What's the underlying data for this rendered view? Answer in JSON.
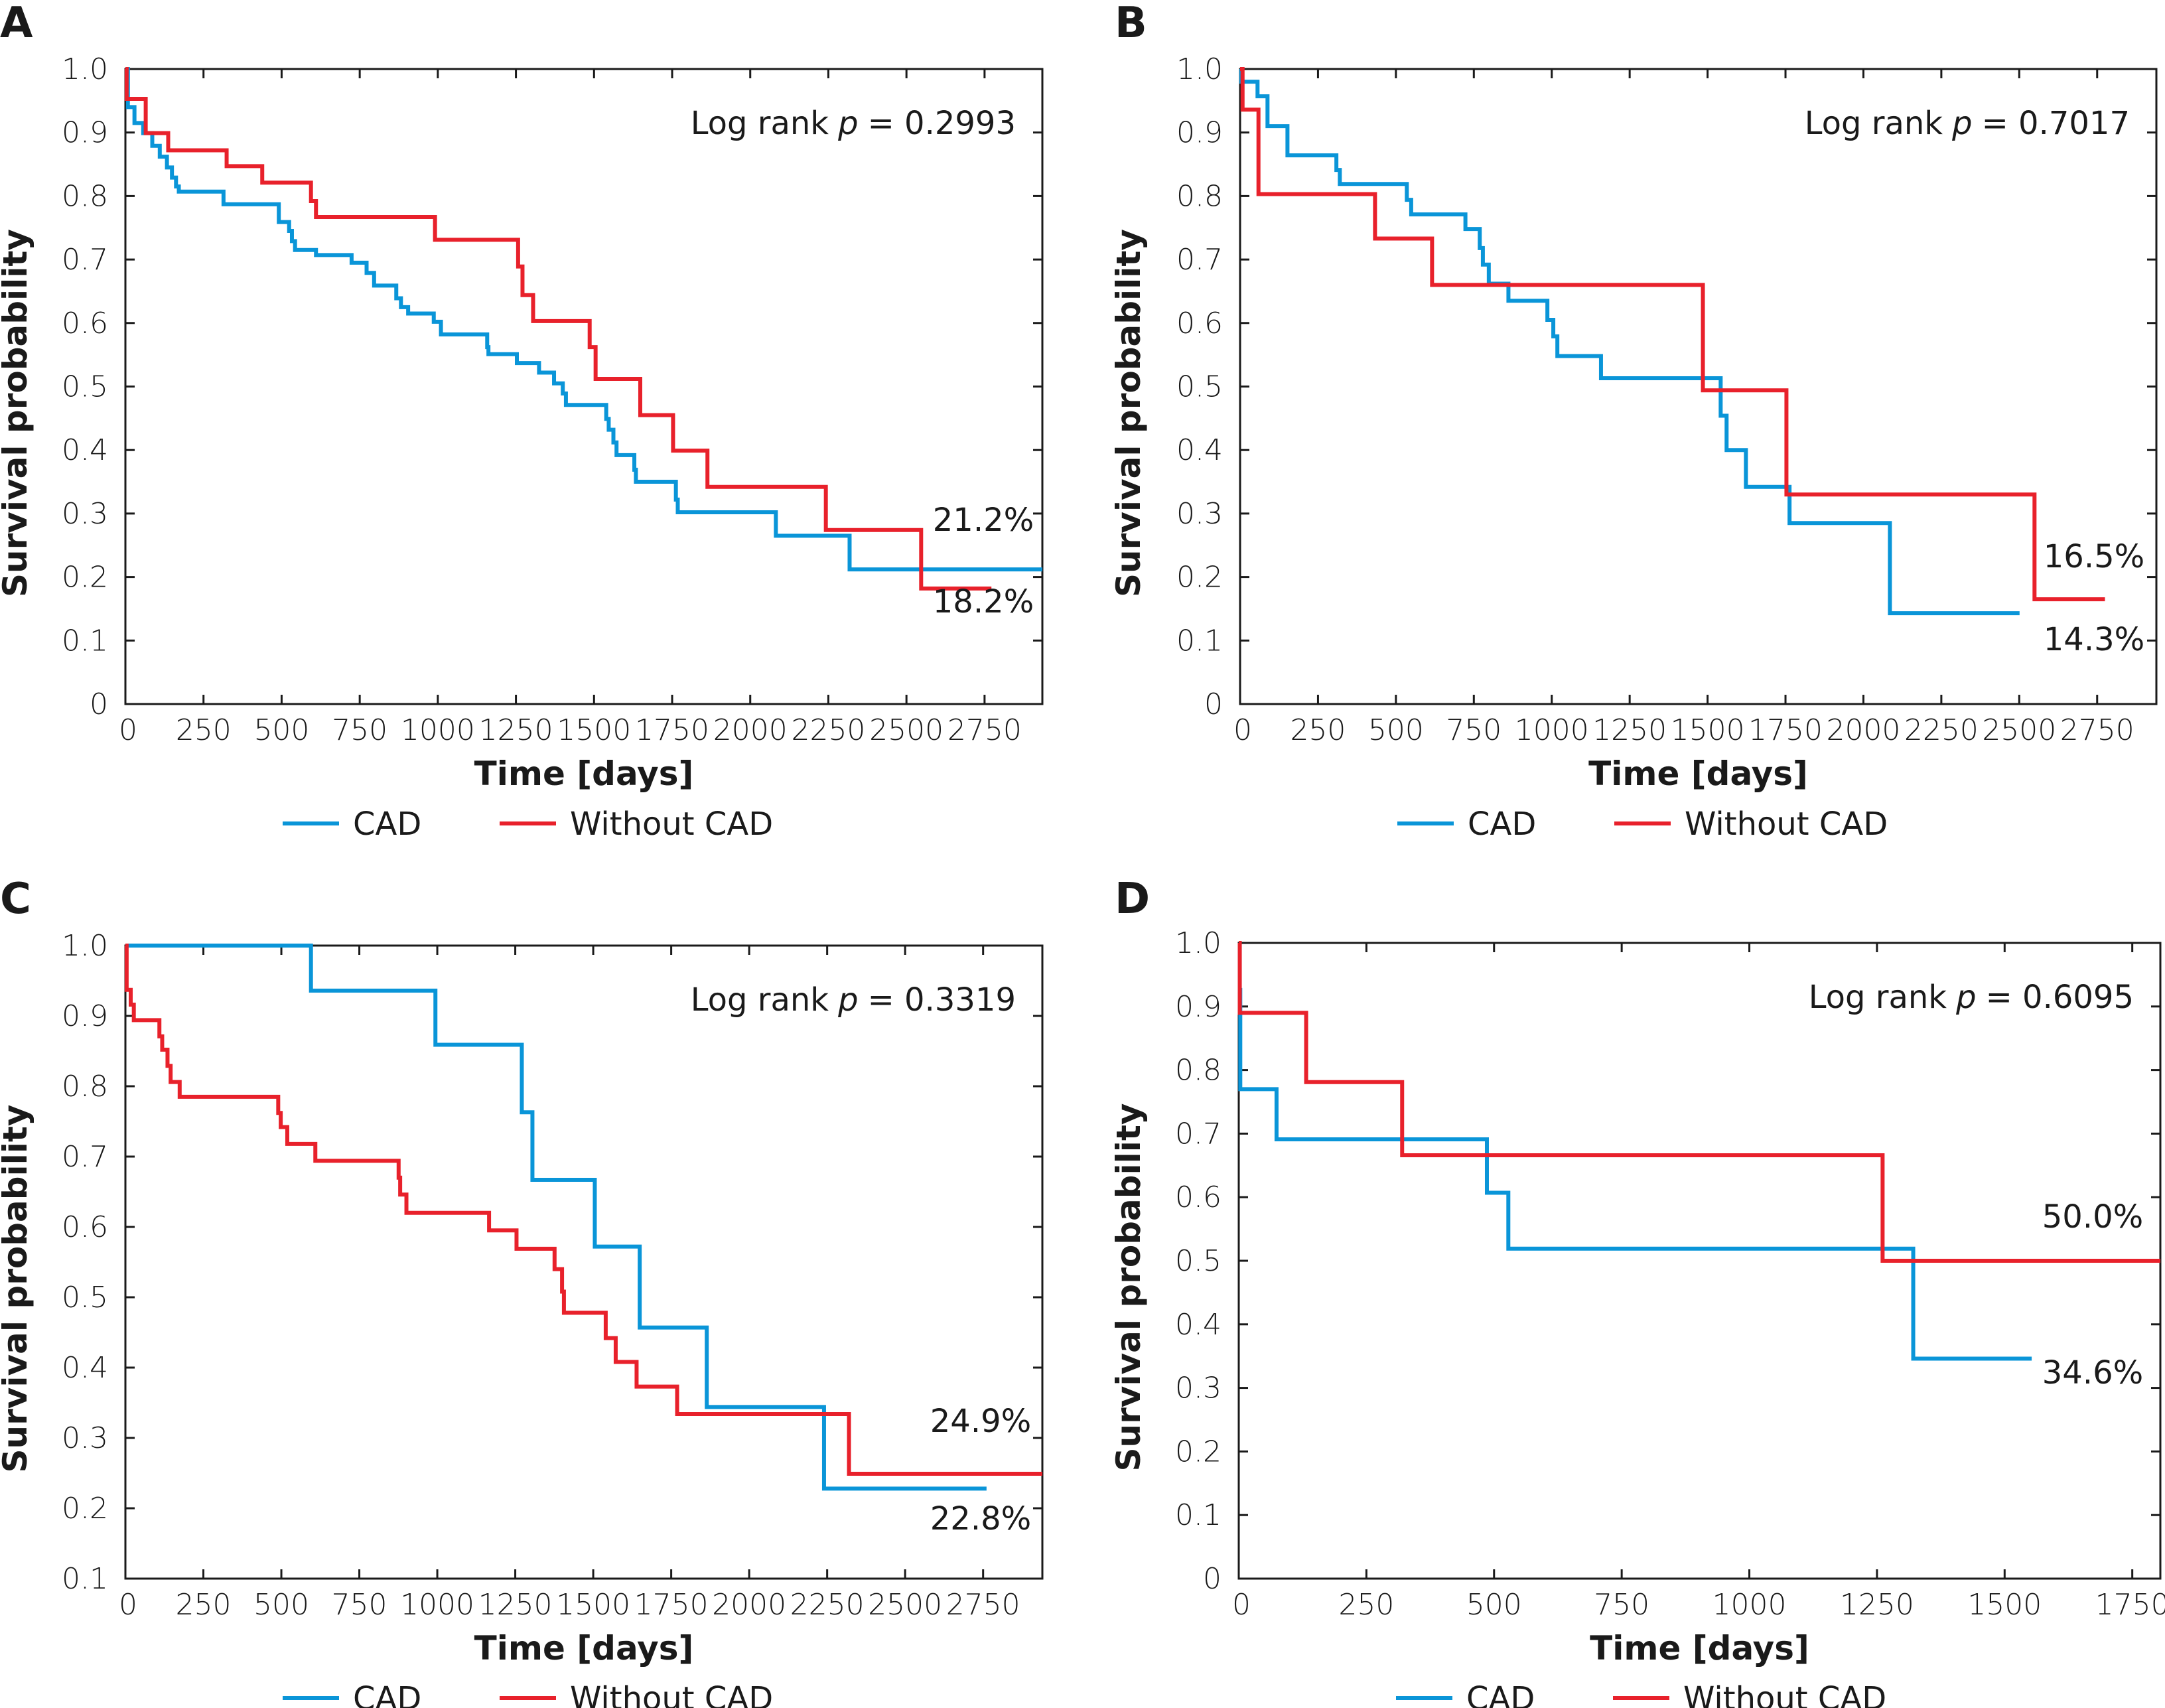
{
  "legend": {
    "cad": "CAD",
    "without_cad": "Without CAD"
  },
  "colors": {
    "cad": "#0a95d8",
    "without_cad": "#e8212b",
    "axis": "#1a1a1a"
  },
  "chart_data": [
    {
      "panel": "A",
      "type": "line",
      "step": true,
      "xlabel": "Time [days]",
      "ylabel": "Survival probability",
      "xlim": [
        0,
        2935
      ],
      "ylim": [
        0,
        1.0
      ],
      "xticks": [
        "0",
        "250",
        "500",
        "750",
        "1000",
        "1250",
        "1500",
        "1750",
        "2000",
        "2250",
        "2500",
        "2750"
      ],
      "yticks": [
        "0",
        "0.1",
        "0.2",
        "0.3",
        "0.4",
        "0.5",
        "0.6",
        "0.7",
        "0.8",
        "0.9",
        "1.0"
      ],
      "stat_label": "Log rank",
      "stat_symbol": "p",
      "p_value": "= 0.2993",
      "end_labels": {
        "upper": "21.2%",
        "lower": "18.2%"
      },
      "series": [
        {
          "name": "CAD",
          "end": 2935,
          "points": [
            [
              8,
              0.94
            ],
            [
              29,
              0.915
            ],
            [
              57,
              0.899
            ],
            [
              86,
              0.879
            ],
            [
              110,
              0.862
            ],
            [
              133,
              0.845
            ],
            [
              149,
              0.829
            ],
            [
              162,
              0.815
            ],
            [
              171,
              0.807
            ],
            [
              314,
              0.787
            ],
            [
              491,
              0.759
            ],
            [
              524,
              0.745
            ],
            [
              533,
              0.729
            ],
            [
              543,
              0.715
            ],
            [
              610,
              0.707
            ],
            [
              724,
              0.695
            ],
            [
              772,
              0.679
            ],
            [
              796,
              0.659
            ],
            [
              867,
              0.639
            ],
            [
              882,
              0.625
            ],
            [
              905,
              0.615
            ],
            [
              987,
              0.602
            ],
            [
              1010,
              0.582
            ],
            [
              1158,
              0.562
            ],
            [
              1162,
              0.551
            ],
            [
              1253,
              0.537
            ],
            [
              1324,
              0.522
            ],
            [
              1372,
              0.505
            ],
            [
              1400,
              0.489
            ],
            [
              1410,
              0.471
            ],
            [
              1539,
              0.449
            ],
            [
              1547,
              0.432
            ],
            [
              1562,
              0.412
            ],
            [
              1572,
              0.392
            ],
            [
              1629,
              0.369
            ],
            [
              1634,
              0.35
            ],
            [
              1762,
              0.322
            ],
            [
              1768,
              0.302
            ],
            [
              2082,
              0.265
            ],
            [
              2318,
              0.212
            ]
          ]
        },
        {
          "name": "Without CAD",
          "end": 2772,
          "points": [
            [
              4,
              0.953
            ],
            [
              65,
              0.899
            ],
            [
              137,
              0.872
            ],
            [
              324,
              0.847
            ],
            [
              438,
              0.821
            ],
            [
              594,
              0.792
            ],
            [
              610,
              0.767
            ],
            [
              991,
              0.731
            ],
            [
              1257,
              0.689
            ],
            [
              1271,
              0.644
            ],
            [
              1305,
              0.603
            ],
            [
              1486,
              0.562
            ],
            [
              1505,
              0.512
            ],
            [
              1648,
              0.455
            ],
            [
              1753,
              0.399
            ],
            [
              1863,
              0.342
            ],
            [
              2242,
              0.274
            ],
            [
              2547,
              0.182
            ]
          ]
        }
      ]
    },
    {
      "panel": "B",
      "type": "line",
      "step": true,
      "xlabel": "Time [days]",
      "ylabel": "Survival probability",
      "xlim": [
        0,
        2940
      ],
      "ylim": [
        0,
        1.0
      ],
      "xticks": [
        "0",
        "250",
        "500",
        "750",
        "1000",
        "1250",
        "1500",
        "1750",
        "2000",
        "2250",
        "2500",
        "2750"
      ],
      "yticks": [
        "0",
        "0.1",
        "0.2",
        "0.3",
        "0.4",
        "0.5",
        "0.6",
        "0.7",
        "0.8",
        "0.9",
        "1.0"
      ],
      "stat_label": "Log rank",
      "stat_symbol": "p",
      "p_value": "= 0.7017",
      "end_labels": {
        "upper": "16.5%",
        "lower": "14.3%"
      },
      "series": [
        {
          "name": "CAD",
          "end": 2501,
          "points": [
            [
              4,
              0.98
            ],
            [
              56,
              0.957
            ],
            [
              88,
              0.91
            ],
            [
              152,
              0.864
            ],
            [
              309,
              0.841
            ],
            [
              320,
              0.819
            ],
            [
              535,
              0.794
            ],
            [
              549,
              0.771
            ],
            [
              723,
              0.748
            ],
            [
              769,
              0.718
            ],
            [
              779,
              0.692
            ],
            [
              798,
              0.662
            ],
            [
              861,
              0.635
            ],
            [
              986,
              0.605
            ],
            [
              1005,
              0.579
            ],
            [
              1018,
              0.548
            ],
            [
              1158,
              0.513
            ],
            [
              1542,
              0.454
            ],
            [
              1561,
              0.4
            ],
            [
              1623,
              0.342
            ],
            [
              1763,
              0.285
            ],
            [
              2085,
              0.143
            ]
          ]
        },
        {
          "name": "Without CAD",
          "end": 2775,
          "points": [
            [
              8,
              0.936
            ],
            [
              59,
              0.803
            ],
            [
              433,
              0.733
            ],
            [
              616,
              0.66
            ],
            [
              1485,
              0.494
            ],
            [
              1753,
              0.33
            ],
            [
              2549,
              0.165
            ]
          ]
        }
      ]
    },
    {
      "panel": "C",
      "type": "line",
      "step": true,
      "xlabel": "Time [days]",
      "ylabel": "Survival probability",
      "xlim": [
        0,
        2940
      ],
      "ylim": [
        0.1,
        1.0
      ],
      "xticks": [
        "0",
        "250",
        "500",
        "750",
        "1000",
        "1250",
        "1500",
        "1750",
        "2000",
        "2250",
        "2500",
        "2750"
      ],
      "yticks": [
        "0.1",
        "0.2",
        "0.3",
        "0.4",
        "0.5",
        "0.6",
        "0.7",
        "0.8",
        "0.9",
        "1.0"
      ],
      "stat_label": "Log rank",
      "stat_symbol": "p",
      "p_value": "= 0.3319",
      "end_labels": {
        "upper": "24.9%",
        "lower": "22.8%"
      },
      "series": [
        {
          "name": "CAD",
          "end": 2761,
          "points": [
            [
              595,
              0.936
            ],
            [
              994,
              0.859
            ],
            [
              1271,
              0.763
            ],
            [
              1305,
              0.667
            ],
            [
              1505,
              0.572
            ],
            [
              1649,
              0.457
            ],
            [
              1864,
              0.344
            ],
            [
              2240,
              0.228
            ]
          ]
        },
        {
          "name": "Without CAD",
          "end": 2940,
          "points": [
            [
              4,
              0.961
            ],
            [
              4,
              0.937
            ],
            [
              17,
              0.916
            ],
            [
              27,
              0.894
            ],
            [
              109,
              0.871
            ],
            [
              118,
              0.852
            ],
            [
              135,
              0.829
            ],
            [
              145,
              0.806
            ],
            [
              174,
              0.785
            ],
            [
              490,
              0.762
            ],
            [
              498,
              0.742
            ],
            [
              519,
              0.718
            ],
            [
              609,
              0.694
            ],
            [
              876,
              0.67
            ],
            [
              881,
              0.646
            ],
            [
              901,
              0.62
            ],
            [
              1166,
              0.595
            ],
            [
              1254,
              0.569
            ],
            [
              1376,
              0.54
            ],
            [
              1400,
              0.508
            ],
            [
              1406,
              0.478
            ],
            [
              1540,
              0.442
            ],
            [
              1572,
              0.408
            ],
            [
              1639,
              0.373
            ],
            [
              1769,
              0.334
            ],
            [
              2320,
              0.249
            ]
          ]
        }
      ]
    },
    {
      "panel": "D",
      "type": "line",
      "step": true,
      "xlabel": "Time [days]",
      "ylabel": "Survival probability",
      "xlim": [
        0,
        1805
      ],
      "ylim": [
        0,
        1.0
      ],
      "xticks": [
        "0",
        "250",
        "500",
        "750",
        "1000",
        "1250",
        "1500",
        "1750"
      ],
      "yticks": [
        "0",
        "0.1",
        "0.2",
        "0.3",
        "0.4",
        "0.5",
        "0.6",
        "0.7",
        "0.8",
        "0.9",
        "1.0"
      ],
      "stat_label": "Log rank",
      "stat_symbol": "p",
      "p_value": "= 0.6095",
      "end_labels": {
        "upper": "50.0%",
        "lower": "34.6%"
      },
      "series": [
        {
          "name": "CAD",
          "end": 1553,
          "points": [
            [
              2,
              0.926
            ],
            [
              3,
              0.77
            ],
            [
              74,
              0.691
            ],
            [
              486,
              0.607
            ],
            [
              528,
              0.519
            ],
            [
              1321,
              0.346
            ]
          ]
        },
        {
          "name": "Without CAD",
          "end": 1805,
          "points": [
            [
              2,
              0.89
            ],
            [
              132,
              0.781
            ],
            [
              320,
              0.666
            ],
            [
              1261,
              0.5
            ]
          ]
        }
      ]
    }
  ]
}
